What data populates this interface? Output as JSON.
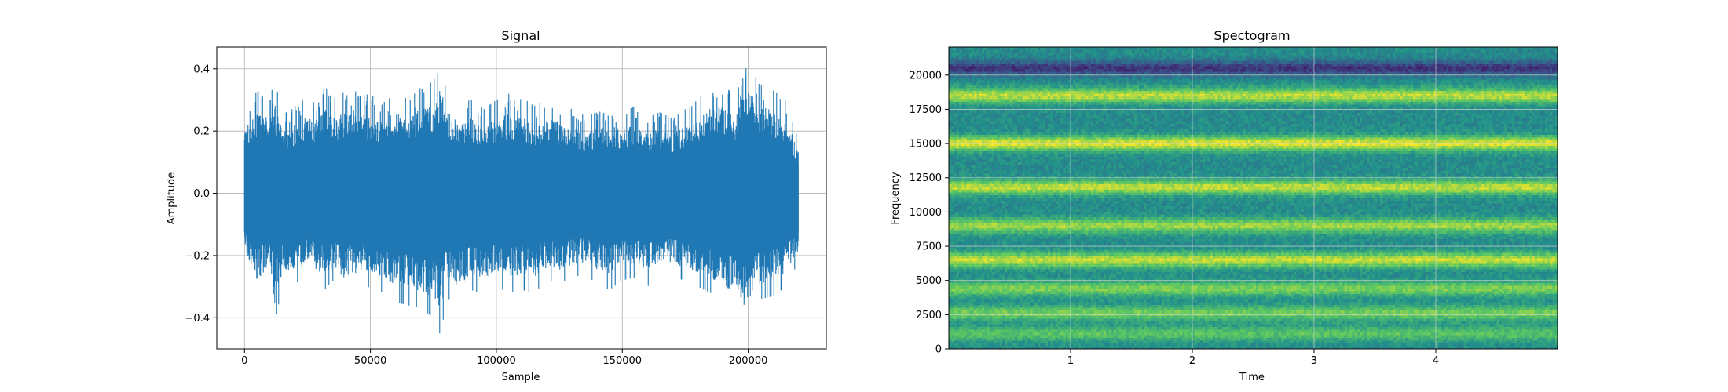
{
  "chart_data": [
    {
      "type": "line",
      "title": "Signal",
      "xlabel": "Sample",
      "ylabel": "Amplitude",
      "xlim": [
        -11000,
        231000
      ],
      "ylim": [
        -0.5,
        0.47
      ],
      "xticks": [
        0,
        50000,
        100000,
        150000,
        200000
      ],
      "xtick_labels": [
        "0",
        "50000",
        "100000",
        "150000",
        "200000"
      ],
      "yticks": [
        -0.4,
        -0.2,
        0.0,
        0.2,
        0.4
      ],
      "ytick_labels": [
        "−0.4",
        "−0.2",
        "0.0",
        "0.2",
        "0.4"
      ],
      "grid": true,
      "color": "#1f77b4",
      "series": [
        {
          "x": [
            0,
            5000,
            10000,
            12000,
            15000,
            20000,
            25000,
            30000,
            32000,
            35000,
            40000,
            42000,
            45000,
            50000,
            55000,
            60000,
            65000,
            70000,
            75000,
            78000,
            80000,
            85000,
            90000,
            95000,
            100000,
            105000,
            110000,
            115000,
            120000,
            125000,
            130000,
            135000,
            140000,
            145000,
            150000,
            155000,
            160000,
            165000,
            170000,
            175000,
            180000,
            185000,
            190000,
            195000,
            198000,
            200000,
            205000,
            210000,
            215000,
            220000
          ],
          "y_max": [
            0.27,
            0.33,
            0.3,
            0.37,
            0.25,
            0.28,
            0.31,
            0.29,
            0.4,
            0.3,
            0.33,
            0.37,
            0.31,
            0.32,
            0.29,
            0.33,
            0.3,
            0.34,
            0.36,
            0.43,
            0.33,
            0.29,
            0.3,
            0.27,
            0.3,
            0.32,
            0.31,
            0.28,
            0.3,
            0.29,
            0.27,
            0.25,
            0.26,
            0.27,
            0.26,
            0.28,
            0.25,
            0.26,
            0.24,
            0.27,
            0.3,
            0.36,
            0.35,
            0.31,
            0.39,
            0.41,
            0.35,
            0.33,
            0.3,
            0.17
          ],
          "y_min": [
            -0.21,
            -0.34,
            -0.26,
            -0.42,
            -0.3,
            -0.29,
            -0.27,
            -0.3,
            -0.31,
            -0.28,
            -0.33,
            -0.3,
            -0.31,
            -0.3,
            -0.32,
            -0.35,
            -0.36,
            -0.37,
            -0.4,
            -0.46,
            -0.34,
            -0.35,
            -0.31,
            -0.33,
            -0.3,
            -0.32,
            -0.31,
            -0.32,
            -0.28,
            -0.29,
            -0.27,
            -0.26,
            -0.29,
            -0.31,
            -0.28,
            -0.27,
            -0.3,
            -0.26,
            -0.27,
            -0.28,
            -0.3,
            -0.32,
            -0.35,
            -0.38,
            -0.43,
            -0.4,
            -0.34,
            -0.33,
            -0.3,
            -0.22
          ]
        }
      ]
    },
    {
      "type": "heatmap",
      "title": "Spectogram",
      "xlabel": "Time",
      "ylabel": "Frequency",
      "xlim": [
        0,
        5
      ],
      "ylim": [
        0,
        22050
      ],
      "xticks": [
        1,
        2,
        3,
        4
      ],
      "xtick_labels": [
        "1",
        "2",
        "3",
        "4"
      ],
      "yticks": [
        0,
        2500,
        5000,
        7500,
        10000,
        12500,
        15000,
        17500,
        20000
      ],
      "ytick_labels": [
        "0",
        "2500",
        "5000",
        "7500",
        "10000",
        "12500",
        "15000",
        "17500",
        "20000"
      ],
      "grid": true,
      "colormap": [
        "#440154",
        "#3b528b",
        "#21918c",
        "#5ec962",
        "#fde725"
      ],
      "bands": [
        {
          "freq": 1100,
          "intensity": 0.72
        },
        {
          "freq": 2600,
          "intensity": 0.78
        },
        {
          "freq": 4400,
          "intensity": 0.8
        },
        {
          "freq": 6500,
          "intensity": 0.92
        },
        {
          "freq": 9000,
          "intensity": 0.86
        },
        {
          "freq": 11800,
          "intensity": 0.9
        },
        {
          "freq": 15000,
          "intensity": 0.95
        },
        {
          "freq": 18500,
          "intensity": 0.9
        },
        {
          "freq": 20500,
          "intensity": 0.15
        }
      ]
    }
  ]
}
